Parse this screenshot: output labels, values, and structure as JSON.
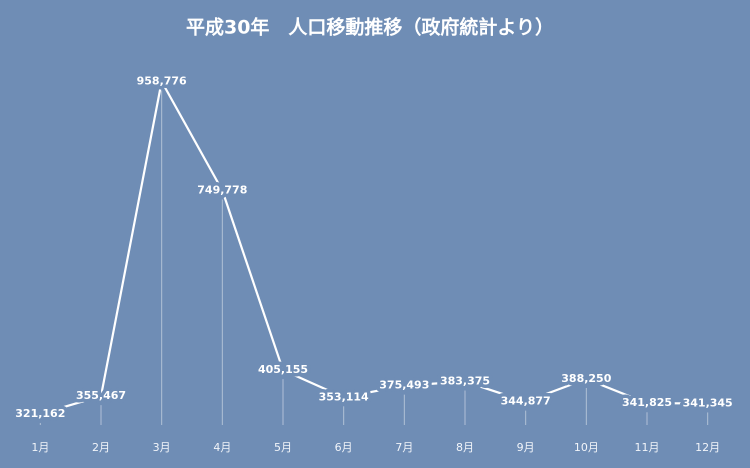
{
  "chart_data": {
    "type": "line",
    "title": "平成30年　人口移動推移（政府統計より）",
    "categories": [
      "1月",
      "2月",
      "3月",
      "4月",
      "5月",
      "6月",
      "7月",
      "8月",
      "9月",
      "10月",
      "11月",
      "12月"
    ],
    "values": [
      321162,
      355467,
      958776,
      749778,
      405155,
      353114,
      375493,
      383375,
      344877,
      388250,
      341825,
      341345
    ],
    "value_labels": [
      "321,162",
      "355,467",
      "958,776",
      "749,778",
      "405,155",
      "353,114",
      "375,493",
      "383,375",
      "344,877",
      "388,250",
      "341,825",
      "341,345"
    ],
    "color": "#ffffff",
    "ylim": [
      300000,
      1000000
    ]
  }
}
